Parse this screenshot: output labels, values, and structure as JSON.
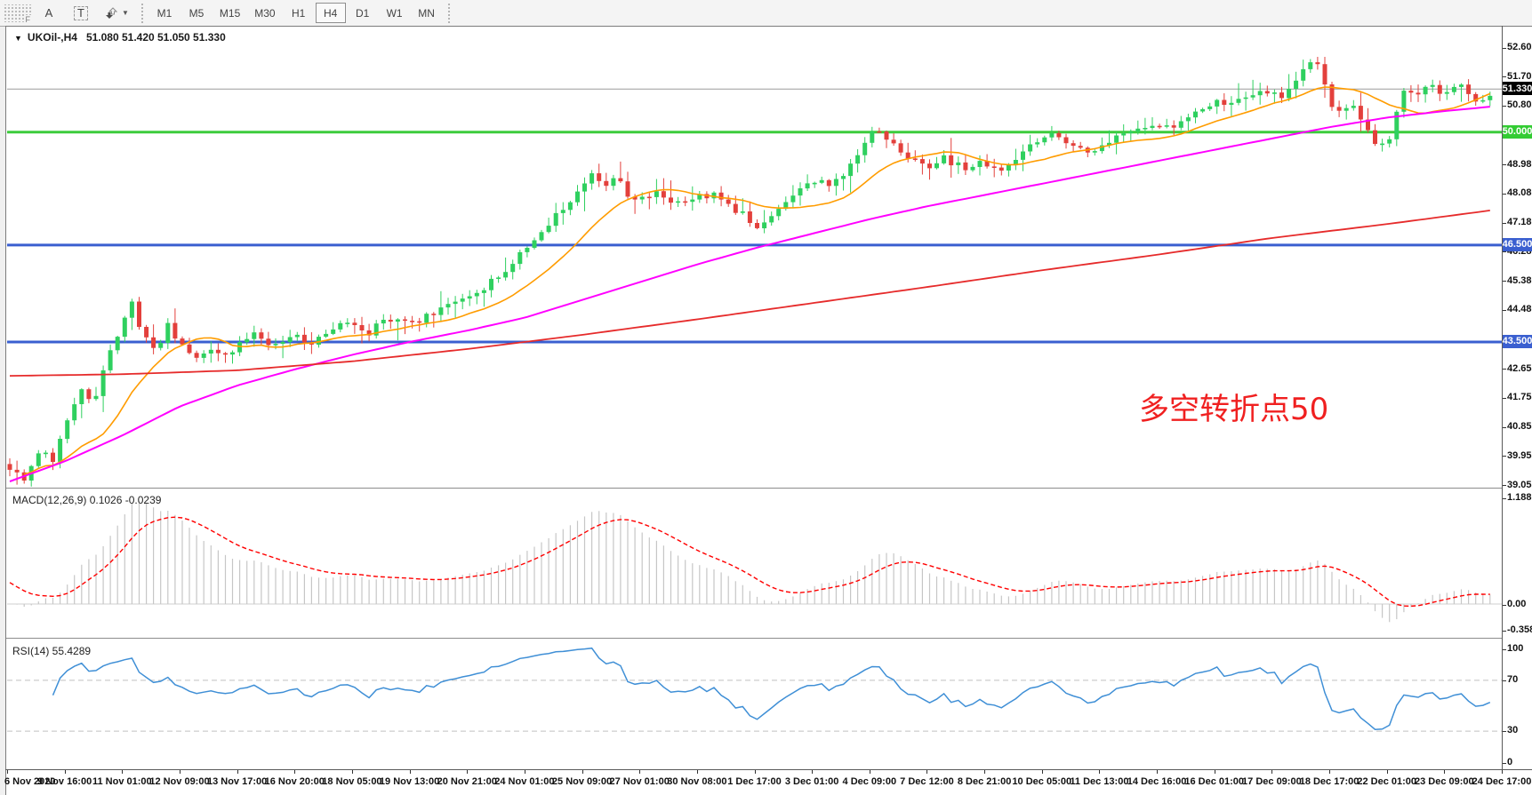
{
  "toolbar": {
    "grip_label": "F",
    "tool_a_label": "A",
    "tool_t_label": "T",
    "dropdown_caret": "▼",
    "timeframes": [
      "M1",
      "M5",
      "M15",
      "M30",
      "H1",
      "H4",
      "D1",
      "W1",
      "MN"
    ],
    "active_timeframe": "H4"
  },
  "chart": {
    "dropdown_icon": "▼",
    "symbol_title": "UKOil-,H4",
    "ohlc_text": "51.080 51.420 51.050 51.330"
  },
  "price_axis": {
    "ticks": [
      "52.605",
      "51.705",
      "50.805",
      "48.980",
      "48.080",
      "47.180",
      "46.280",
      "45.380",
      "44.480",
      "42.655",
      "41.755",
      "40.855",
      "39.955",
      "39.055"
    ],
    "badges": [
      {
        "label": "51.330",
        "price": 51.33,
        "bg": "#000000"
      },
      {
        "label": "50.000",
        "price": 50.0,
        "bg": "#33cc33"
      },
      {
        "label": "46.500",
        "price": 46.5,
        "bg": "#3a5fd0"
      },
      {
        "label": "43.500",
        "price": 43.5,
        "bg": "#3a5fd0"
      }
    ]
  },
  "time_axis": {
    "labels": [
      "6 Nov 2020",
      "9 Nov 16:00",
      "11 Nov 01:00",
      "12 Nov 09:00",
      "13 Nov 17:00",
      "16 Nov 20:00",
      "18 Nov 05:00",
      "19 Nov 13:00",
      "20 Nov 21:00",
      "24 Nov 01:00",
      "25 Nov 09:00",
      "27 Nov 01:00",
      "30 Nov 08:00",
      "1 Dec 17:00",
      "3 Dec 01:00",
      "4 Dec 09:00",
      "7 Dec 12:00",
      "8 Dec 21:00",
      "10 Dec 05:00",
      "11 Dec 13:00",
      "14 Dec 16:00",
      "16 Dec 01:00",
      "17 Dec 09:00",
      "18 Dec 17:00",
      "22 Dec 01:00",
      "23 Dec 09:00",
      "24 Dec 17:00"
    ]
  },
  "annotation": {
    "text": "多空转折点50",
    "color": "#f02020"
  },
  "macd_panel": {
    "label": "MACD(12,26,9) 0.1026 -0.0239",
    "axis_labels": [
      "1.188",
      "0.00",
      "-0.3582"
    ]
  },
  "rsi_panel": {
    "label": "RSI(14) 55.4289",
    "axis_labels": [
      "100",
      "70",
      "30",
      "0"
    ]
  },
  "chart_data": {
    "type": "candlestick",
    "symbol": "UKOil-",
    "period": "H4",
    "ohlc_current": {
      "open": 51.08,
      "high": 51.42,
      "low": 51.05,
      "close": 51.33
    },
    "price_range": [
      39.055,
      52.605
    ],
    "current_price": 51.33,
    "horizontal_levels": [
      {
        "price": 50.0,
        "color": "#3dcc3d"
      },
      {
        "price": 46.5,
        "color": "#3a5fd0"
      },
      {
        "price": 43.5,
        "color": "#3a5fd0"
      }
    ],
    "candle_up_color": "#2fd05f",
    "candle_down_color": "#e3403c",
    "candles_per_label": 8,
    "close_anchors": [
      [
        0,
        39.55
      ],
      [
        0.3,
        39.3
      ],
      [
        0.6,
        40.2
      ],
      [
        0.8,
        39.7
      ],
      [
        1,
        41.0
      ],
      [
        1.3,
        42.1
      ],
      [
        1.5,
        41.6
      ],
      [
        1.8,
        43.2
      ],
      [
        2,
        44.0
      ],
      [
        2.15,
        44.75
      ],
      [
        2.4,
        43.6
      ],
      [
        2.6,
        43.2
      ],
      [
        2.8,
        44.1
      ],
      [
        3,
        43.4
      ],
      [
        3.3,
        42.95
      ],
      [
        3.6,
        43.3
      ],
      [
        3.8,
        43.1
      ],
      [
        4,
        43.35
      ],
      [
        4.3,
        43.8
      ],
      [
        4.6,
        43.3
      ],
      [
        5,
        43.7
      ],
      [
        5.3,
        43.5
      ],
      [
        5.6,
        43.9
      ],
      [
        6,
        44.1
      ],
      [
        6.3,
        43.8
      ],
      [
        6.6,
        44.25
      ],
      [
        7,
        44.0
      ],
      [
        7.3,
        44.3
      ],
      [
        7.6,
        44.6
      ],
      [
        8,
        44.95
      ],
      [
        8.3,
        45.2
      ],
      [
        8.6,
        45.6
      ],
      [
        9,
        46.4
      ],
      [
        9.3,
        46.9
      ],
      [
        9.6,
        47.5
      ],
      [
        10,
        48.35
      ],
      [
        10.2,
        48.75
      ],
      [
        10.4,
        48.3
      ],
      [
        10.6,
        48.6
      ],
      [
        10.8,
        48.1
      ],
      [
        11,
        47.9
      ],
      [
        11.3,
        48.15
      ],
      [
        11.6,
        47.8
      ],
      [
        12,
        48.0
      ],
      [
        12.3,
        48.1
      ],
      [
        12.6,
        47.7
      ],
      [
        12.9,
        47.3
      ],
      [
        13.1,
        46.95
      ],
      [
        13.4,
        47.6
      ],
      [
        13.7,
        48.0
      ],
      [
        14,
        48.5
      ],
      [
        14.3,
        48.35
      ],
      [
        14.6,
        48.7
      ],
      [
        15,
        49.9
      ],
      [
        15.2,
        50.05
      ],
      [
        15.5,
        49.4
      ],
      [
        15.8,
        49.1
      ],
      [
        16,
        48.95
      ],
      [
        16.3,
        49.2
      ],
      [
        16.6,
        48.9
      ],
      [
        17,
        49.05
      ],
      [
        17.3,
        48.85
      ],
      [
        17.6,
        49.2
      ],
      [
        18,
        49.85
      ],
      [
        18.2,
        50.1
      ],
      [
        18.5,
        49.6
      ],
      [
        18.8,
        49.3
      ],
      [
        19,
        49.55
      ],
      [
        19.3,
        49.9
      ],
      [
        19.6,
        50.1
      ],
      [
        20,
        50.3
      ],
      [
        20.3,
        50.15
      ],
      [
        20.6,
        50.5
      ],
      [
        21,
        50.95
      ],
      [
        21.3,
        50.8
      ],
      [
        21.6,
        51.15
      ],
      [
        22,
        51.3
      ],
      [
        22.2,
        51.0
      ],
      [
        22.45,
        51.65
      ],
      [
        22.7,
        52.2
      ],
      [
        22.85,
        51.9
      ],
      [
        23,
        50.9
      ],
      [
        23.2,
        50.6
      ],
      [
        23.4,
        50.9
      ],
      [
        23.6,
        50.3
      ],
      [
        23.8,
        49.7
      ],
      [
        24,
        49.5
      ],
      [
        24.15,
        50.4
      ],
      [
        24.3,
        51.3
      ],
      [
        24.5,
        51.1
      ],
      [
        24.7,
        51.55
      ],
      [
        25,
        51.2
      ],
      [
        25.3,
        51.45
      ],
      [
        25.6,
        50.95
      ],
      [
        25.8,
        51.2
      ],
      [
        26,
        51.33
      ]
    ],
    "ma_fast": {
      "color": "#ff9c00",
      "type": "sma",
      "window": 14
    },
    "ma_mid": {
      "color": "#ff00ff",
      "anchors": [
        [
          0,
          39.15
        ],
        [
          1,
          39.8
        ],
        [
          2,
          40.6
        ],
        [
          3,
          41.5
        ],
        [
          4,
          42.15
        ],
        [
          5,
          42.65
        ],
        [
          6,
          43.1
        ],
        [
          7,
          43.5
        ],
        [
          8,
          43.85
        ],
        [
          9,
          44.25
        ],
        [
          10,
          44.8
        ],
        [
          11,
          45.35
        ],
        [
          12,
          45.9
        ],
        [
          13,
          46.4
        ],
        [
          14,
          46.85
        ],
        [
          15,
          47.3
        ],
        [
          16,
          47.7
        ],
        [
          17,
          48.05
        ],
        [
          18,
          48.4
        ],
        [
          19,
          48.75
        ],
        [
          20,
          49.1
        ],
        [
          21,
          49.45
        ],
        [
          22,
          49.8
        ],
        [
          23,
          50.15
        ],
        [
          24,
          50.45
        ],
        [
          25,
          50.65
        ],
        [
          26,
          50.82
        ]
      ]
    },
    "ma_slow": {
      "color": "#e62b2b",
      "anchors": [
        [
          0,
          42.45
        ],
        [
          2,
          42.5
        ],
        [
          4,
          42.62
        ],
        [
          6,
          42.9
        ],
        [
          8,
          43.28
        ],
        [
          10,
          43.72
        ],
        [
          12,
          44.2
        ],
        [
          14,
          44.7
        ],
        [
          16,
          45.2
        ],
        [
          18,
          45.72
        ],
        [
          20,
          46.2
        ],
        [
          22,
          46.72
        ],
        [
          24,
          47.15
        ],
        [
          26,
          47.62
        ]
      ]
    },
    "macd": {
      "fast": 12,
      "slow": 26,
      "signal": 9,
      "current": 0.1026,
      "current_signal": -0.0239,
      "y_range": [
        -0.3582,
        1.188
      ],
      "histogram_color": "#c6c6c6",
      "signal_color": "#ff0000"
    },
    "rsi": {
      "period": 14,
      "current": 55.4289,
      "levels": [
        30,
        70
      ],
      "line_color": "#3f8fd6",
      "y_range": [
        0,
        100
      ]
    }
  }
}
